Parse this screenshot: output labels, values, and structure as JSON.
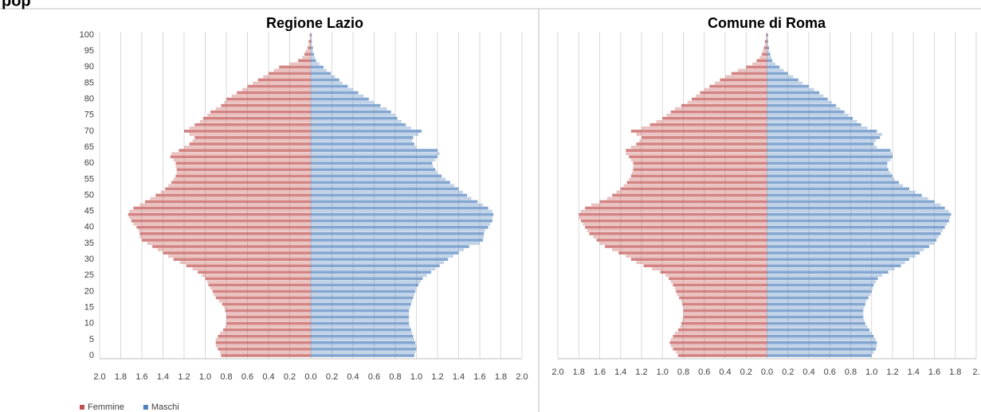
{
  "header": "pop",
  "chart_data": [
    {
      "type": "pyramid",
      "title": "Regione Lazio",
      "y": [
        0,
        1,
        2,
        3,
        4,
        5,
        6,
        7,
        8,
        9,
        10,
        11,
        12,
        13,
        14,
        15,
        16,
        17,
        18,
        19,
        20,
        21,
        22,
        23,
        24,
        25,
        26,
        27,
        28,
        29,
        30,
        31,
        32,
        33,
        34,
        35,
        36,
        37,
        38,
        39,
        40,
        41,
        42,
        43,
        44,
        45,
        46,
        47,
        48,
        49,
        50,
        51,
        52,
        53,
        54,
        55,
        56,
        57,
        58,
        59,
        60,
        61,
        62,
        63,
        64,
        65,
        66,
        67,
        68,
        69,
        70,
        71,
        72,
        73,
        74,
        75,
        76,
        77,
        78,
        79,
        80,
        81,
        82,
        83,
        84,
        85,
        86,
        87,
        88,
        89,
        90,
        91,
        92,
        93,
        94,
        95,
        96,
        97,
        98,
        99,
        100
      ],
      "ylim": [
        0,
        100
      ],
      "yticks": [
        0,
        5,
        10,
        15,
        20,
        25,
        30,
        35,
        40,
        45,
        50,
        55,
        60,
        65,
        70,
        75,
        80,
        85,
        90,
        95,
        100
      ],
      "xlim": [
        -2,
        2
      ],
      "xticks": [
        {
          "value": -2,
          "label": "2.0"
        },
        {
          "value": -1.8,
          "label": "1.8"
        },
        {
          "value": -1.6,
          "label": "1.6"
        },
        {
          "value": -1.4,
          "label": "1.4"
        },
        {
          "value": -1.2,
          "label": "1.2"
        },
        {
          "value": -1,
          "label": "1.0"
        },
        {
          "value": -0.8,
          "label": "0.8"
        },
        {
          "value": -0.6,
          "label": "0.6"
        },
        {
          "value": -0.4,
          "label": "0.4"
        },
        {
          "value": -0.2,
          "label": "0.2"
        },
        {
          "value": 0,
          "label": "0.0"
        },
        {
          "value": 0.2,
          "label": "0.2"
        },
        {
          "value": 0.4,
          "label": "0.4"
        },
        {
          "value": 0.6,
          "label": "0.6"
        },
        {
          "value": 0.8,
          "label": "0.8"
        },
        {
          "value": 1,
          "label": "1.0"
        },
        {
          "value": 1.2,
          "label": "1.2"
        },
        {
          "value": 1.4,
          "label": "1.4"
        },
        {
          "value": 1.6,
          "label": "1.6"
        },
        {
          "value": 1.8,
          "label": "1.8"
        },
        {
          "value": 2,
          "label": "2.0"
        }
      ],
      "grid": true,
      "legend": "bottom-left",
      "series": [
        {
          "name": "Femmine",
          "color": "#c0504d",
          "side": "left",
          "values": [
            0.85,
            0.86,
            0.88,
            0.9,
            0.9,
            0.9,
            0.88,
            0.86,
            0.83,
            0.81,
            0.8,
            0.8,
            0.8,
            0.8,
            0.81,
            0.82,
            0.84,
            0.87,
            0.9,
            0.92,
            0.93,
            0.95,
            0.97,
            0.98,
            1.0,
            1.03,
            1.07,
            1.12,
            1.18,
            1.24,
            1.3,
            1.35,
            1.4,
            1.45,
            1.5,
            1.55,
            1.6,
            1.62,
            1.62,
            1.63,
            1.65,
            1.68,
            1.7,
            1.72,
            1.73,
            1.72,
            1.68,
            1.62,
            1.57,
            1.52,
            1.47,
            1.42,
            1.38,
            1.35,
            1.32,
            1.3,
            1.28,
            1.27,
            1.27,
            1.28,
            1.28,
            1.3,
            1.33,
            1.32,
            1.25,
            1.2,
            1.15,
            1.12,
            1.1,
            1.15,
            1.2,
            1.15,
            1.1,
            1.05,
            1.02,
            0.98,
            0.95,
            0.9,
            0.85,
            0.82,
            0.8,
            0.75,
            0.7,
            0.65,
            0.6,
            0.55,
            0.5,
            0.45,
            0.4,
            0.35,
            0.3,
            0.2,
            0.12,
            0.08,
            0.06,
            0.05,
            0.03,
            0.02,
            0.02,
            0.01,
            0.01
          ]
        },
        {
          "name": "Maschi",
          "color": "#4f81bd",
          "side": "right",
          "values": [
            0.98,
            0.99,
            1.0,
            1.0,
            0.99,
            0.98,
            0.97,
            0.96,
            0.95,
            0.94,
            0.93,
            0.93,
            0.93,
            0.93,
            0.93,
            0.94,
            0.95,
            0.96,
            0.97,
            0.98,
            0.99,
            1.0,
            1.02,
            1.04,
            1.06,
            1.1,
            1.14,
            1.18,
            1.22,
            1.26,
            1.3,
            1.35,
            1.4,
            1.45,
            1.5,
            1.6,
            1.63,
            1.64,
            1.64,
            1.65,
            1.68,
            1.7,
            1.72,
            1.72,
            1.73,
            1.72,
            1.68,
            1.63,
            1.58,
            1.52,
            1.48,
            1.44,
            1.4,
            1.36,
            1.32,
            1.28,
            1.24,
            1.2,
            1.18,
            1.16,
            1.15,
            1.18,
            1.2,
            1.22,
            1.2,
            1.0,
            0.98,
            0.96,
            0.97,
            1.02,
            1.05,
            0.95,
            0.9,
            0.86,
            0.82,
            0.8,
            0.76,
            0.72,
            0.66,
            0.6,
            0.55,
            0.5,
            0.45,
            0.4,
            0.35,
            0.3,
            0.27,
            0.23,
            0.19,
            0.15,
            0.12,
            0.08,
            0.05,
            0.04,
            0.03,
            0.02,
            0.02,
            0.01,
            0.01,
            0.01,
            0.01
          ]
        }
      ]
    },
    {
      "type": "pyramid",
      "title": "Comune di Roma",
      "y": [
        0,
        1,
        2,
        3,
        4,
        5,
        6,
        7,
        8,
        9,
        10,
        11,
        12,
        13,
        14,
        15,
        16,
        17,
        18,
        19,
        20,
        21,
        22,
        23,
        24,
        25,
        26,
        27,
        28,
        29,
        30,
        31,
        32,
        33,
        34,
        35,
        36,
        37,
        38,
        39,
        40,
        41,
        42,
        43,
        44,
        45,
        46,
        47,
        48,
        49,
        50,
        51,
        52,
        53,
        54,
        55,
        56,
        57,
        58,
        59,
        60,
        61,
        62,
        63,
        64,
        65,
        66,
        67,
        68,
        69,
        70,
        71,
        72,
        73,
        74,
        75,
        76,
        77,
        78,
        79,
        80,
        81,
        82,
        83,
        84,
        85,
        86,
        87,
        88,
        89,
        90,
        91,
        92,
        93,
        94,
        95,
        96,
        97,
        98,
        99,
        100
      ],
      "ylim": [
        0,
        100
      ],
      "xlim": [
        -2,
        2
      ],
      "xticks": [
        {
          "value": -2,
          "label": "2.0"
        },
        {
          "value": -1.8,
          "label": "1.8"
        },
        {
          "value": -1.6,
          "label": "1.6"
        },
        {
          "value": -1.4,
          "label": "1.4"
        },
        {
          "value": -1.2,
          "label": "1.2"
        },
        {
          "value": -1,
          "label": "1.0"
        },
        {
          "value": -0.8,
          "label": "0.8"
        },
        {
          "value": -0.6,
          "label": "0.6"
        },
        {
          "value": -0.4,
          "label": "0.4"
        },
        {
          "value": -0.2,
          "label": "0.2"
        },
        {
          "value": 0,
          "label": "0.0"
        },
        {
          "value": 0.2,
          "label": "0.2"
        },
        {
          "value": 0.4,
          "label": "0.4"
        },
        {
          "value": 0.6,
          "label": "0.6"
        },
        {
          "value": 0.8,
          "label": "0.8"
        },
        {
          "value": 1,
          "label": "1.0"
        },
        {
          "value": 1.2,
          "label": "1.2"
        },
        {
          "value": 1.4,
          "label": "1.4"
        },
        {
          "value": 1.6,
          "label": "1.6"
        },
        {
          "value": 1.8,
          "label": "1.8"
        },
        {
          "value": 2,
          "label": "2."
        }
      ],
      "grid": true,
      "series": [
        {
          "color": "#c0504d",
          "side": "left",
          "values": [
            0.85,
            0.87,
            0.9,
            0.92,
            0.93,
            0.92,
            0.9,
            0.88,
            0.85,
            0.83,
            0.82,
            0.81,
            0.8,
            0.8,
            0.8,
            0.8,
            0.81,
            0.82,
            0.84,
            0.86,
            0.87,
            0.88,
            0.9,
            0.92,
            0.94,
            0.97,
            1.02,
            1.1,
            1.18,
            1.25,
            1.3,
            1.35,
            1.42,
            1.48,
            1.55,
            1.6,
            1.63,
            1.66,
            1.7,
            1.72,
            1.74,
            1.76,
            1.78,
            1.8,
            1.8,
            1.78,
            1.74,
            1.68,
            1.6,
            1.53,
            1.48,
            1.44,
            1.4,
            1.37,
            1.34,
            1.32,
            1.3,
            1.29,
            1.28,
            1.28,
            1.28,
            1.3,
            1.32,
            1.35,
            1.35,
            1.3,
            1.25,
            1.22,
            1.2,
            1.25,
            1.3,
            1.2,
            1.12,
            1.06,
            1.0,
            0.96,
            0.92,
            0.88,
            0.82,
            0.76,
            0.72,
            0.68,
            0.64,
            0.6,
            0.55,
            0.5,
            0.45,
            0.4,
            0.34,
            0.28,
            0.2,
            0.14,
            0.1,
            0.07,
            0.05,
            0.04,
            0.03,
            0.02,
            0.02,
            0.01,
            0.01
          ]
        },
        {
          "color": "#4f81bd",
          "side": "right",
          "values": [
            1.0,
            1.02,
            1.04,
            1.05,
            1.05,
            1.04,
            1.02,
            1.0,
            0.98,
            0.96,
            0.94,
            0.93,
            0.92,
            0.92,
            0.92,
            0.93,
            0.94,
            0.95,
            0.97,
            0.99,
            1.0,
            1.01,
            1.02,
            1.04,
            1.06,
            1.1,
            1.16,
            1.22,
            1.28,
            1.32,
            1.36,
            1.42,
            1.46,
            1.5,
            1.55,
            1.6,
            1.62,
            1.64,
            1.66,
            1.68,
            1.7,
            1.72,
            1.74,
            1.75,
            1.76,
            1.74,
            1.7,
            1.66,
            1.6,
            1.54,
            1.48,
            1.42,
            1.36,
            1.3,
            1.26,
            1.22,
            1.2,
            1.18,
            1.16,
            1.15,
            1.15,
            1.18,
            1.2,
            1.2,
            1.18,
            1.05,
            1.02,
            1.04,
            1.08,
            1.1,
            1.05,
            0.96,
            0.9,
            0.86,
            0.82,
            0.78,
            0.74,
            0.7,
            0.66,
            0.62,
            0.58,
            0.54,
            0.5,
            0.45,
            0.4,
            0.34,
            0.3,
            0.25,
            0.2,
            0.16,
            0.12,
            0.08,
            0.05,
            0.04,
            0.03,
            0.02,
            0.02,
            0.01,
            0.01,
            0.01,
            0.01
          ]
        }
      ]
    }
  ]
}
